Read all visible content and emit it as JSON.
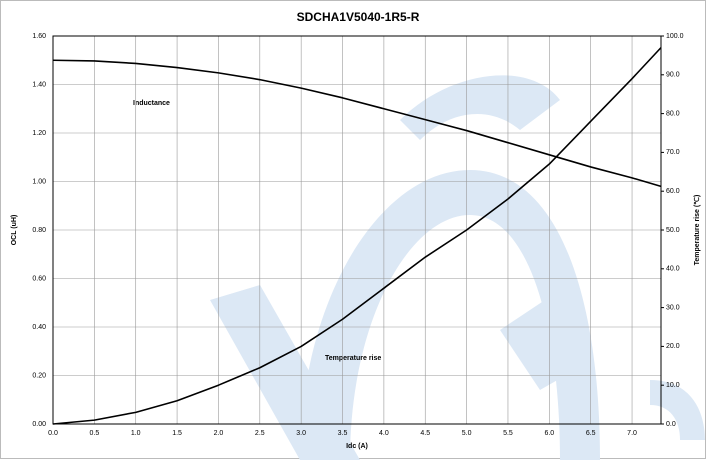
{
  "chart_data": {
    "type": "line",
    "title": "SDCHA1V5040-1R5-R",
    "xlabel": "Idc (A)",
    "ylabel": "OCL (uH)",
    "y2label": "Temperature rise (℃)",
    "annotations": [
      "Inductance",
      "Temperature rise"
    ],
    "x": [
      0,
      0.5,
      1.0,
      1.5,
      2.0,
      2.5,
      3.0,
      3.5,
      4.0,
      4.5,
      5.0,
      5.5,
      6.0,
      6.5,
      7.0,
      7.35
    ],
    "series": [
      {
        "name": "Inductance",
        "color": "#000000",
        "axis": "y",
        "values": [
          1.5,
          1.497,
          1.487,
          1.47,
          1.448,
          1.42,
          1.385,
          1.345,
          1.3,
          1.255,
          1.21,
          1.16,
          1.11,
          1.06,
          1.015,
          0.98
        ]
      },
      {
        "name": "Temperature rise",
        "color": "#000000",
        "axis": "y2",
        "values": [
          0,
          1,
          3,
          6,
          10,
          14.5,
          20,
          27,
          35,
          43,
          50,
          58,
          67,
          78,
          89,
          97
        ]
      }
    ],
    "xlim": [
      0,
      7.35
    ],
    "xticks": [
      {
        "value": 0,
        "label": "0.0"
      },
      0.5,
      {
        "value": 1,
        "label": "1.0"
      },
      1.5,
      {
        "value": 2,
        "label": "2.0"
      },
      2.5,
      {
        "value": 3,
        "label": "3.0"
      },
      3.5,
      {
        "value": 4,
        "label": "4.0"
      },
      4.5,
      {
        "value": 5,
        "label": "5.0"
      },
      5.5,
      {
        "value": 6,
        "label": "6.0"
      },
      6.5,
      {
        "value": 7,
        "label": "7.0"
      }
    ],
    "ylim": [
      0,
      1.6
    ],
    "yticks": [
      {
        "value": 0,
        "label": "0.00"
      },
      {
        "value": 0.2,
        "label": "0.20"
      },
      {
        "value": 0.4,
        "label": "0.40"
      },
      {
        "value": 0.6,
        "label": "0.60"
      },
      {
        "value": 0.8,
        "label": "0.80"
      },
      {
        "value": 1.0,
        "label": "1.00"
      },
      {
        "value": 1.2,
        "label": "1.20"
      },
      {
        "value": 1.4,
        "label": "1.40"
      },
      {
        "value": 1.6,
        "label": "1.60"
      }
    ],
    "y2lim": [
      0,
      100
    ],
    "y2ticks": [
      {
        "value": 0,
        "label": "0.0"
      },
      {
        "value": 10,
        "label": "10.0"
      },
      {
        "value": 20,
        "label": "20.0"
      },
      {
        "value": 30,
        "label": "30.0"
      },
      {
        "value": 40,
        "label": "40.0"
      },
      {
        "value": 50,
        "label": "50.0"
      },
      {
        "value": 60,
        "label": "60.0"
      },
      {
        "value": 70,
        "label": "70.0"
      },
      {
        "value": 80,
        "label": "80.0"
      },
      {
        "value": 90,
        "label": "90.0"
      },
      {
        "value": 100,
        "label": "100.0"
      }
    ],
    "grid": true
  }
}
